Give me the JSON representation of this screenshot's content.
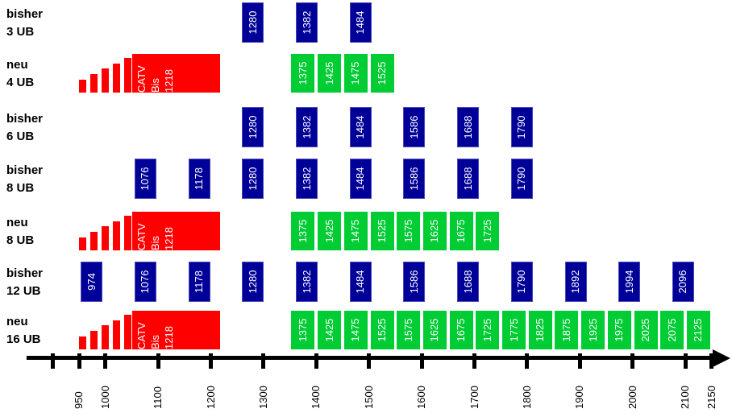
{
  "colors": {
    "bisher_box": "#000099",
    "bisher_border": "#4949b8",
    "neu_box": "#00cc33",
    "catv_block": "#ff0000",
    "axis": "#000000",
    "box_text": "#ffffff",
    "label_text": "#000000"
  },
  "chart_data": {
    "type": "bar",
    "description": "Frequency allocation comparison chart: rows of channel boxes positioned along a horizontal frequency axis",
    "axis": {
      "min": 900,
      "max": 2150,
      "arrow_at_right": true,
      "ticks": [
        {
          "value": 900,
          "label": ""
        },
        {
          "value": 950,
          "label": "950"
        },
        {
          "value": 1000,
          "label": "1000"
        },
        {
          "value": 1100,
          "label": "1100"
        },
        {
          "value": 1200,
          "label": "1200"
        },
        {
          "value": 1300,
          "label": "1300"
        },
        {
          "value": 1400,
          "label": "1400"
        },
        {
          "value": 1500,
          "label": "1500"
        },
        {
          "value": 1600,
          "label": "1600"
        },
        {
          "value": 1700,
          "label": "1700"
        },
        {
          "value": 1800,
          "label": "1800"
        },
        {
          "value": 1900,
          "label": "1900"
        },
        {
          "value": 2000,
          "label": "2000"
        },
        {
          "value": 2100,
          "label": "2100"
        },
        {
          "value": 2150,
          "label": "2150"
        }
      ]
    },
    "catv": {
      "label_lines": [
        "CATV",
        "Bis",
        "1218"
      ],
      "block_from": 1051,
      "block_to": 1218,
      "ramp": {
        "from": 950,
        "to": 1048,
        "bars": 5
      }
    },
    "rows": [
      {
        "id": "bisher-3ub",
        "label_line1": "bisher",
        "label_line2": "3 UB",
        "kind": "bisher",
        "catv": false,
        "boxes": [
          1280,
          1382,
          1484
        ]
      },
      {
        "id": "neu-4ub",
        "label_line1": "neu",
        "label_line2": "4 UB",
        "kind": "neu",
        "catv": true,
        "boxes": [
          1375,
          1425,
          1475,
          1525
        ]
      },
      {
        "id": "bisher-6ub",
        "label_line1": "bisher",
        "label_line2": "6 UB",
        "kind": "bisher",
        "catv": false,
        "boxes": [
          1280,
          1382,
          1484,
          1586,
          1688,
          1790
        ]
      },
      {
        "id": "bisher-8ub",
        "label_line1": "bisher",
        "label_line2": "8 UB",
        "kind": "bisher",
        "catv": false,
        "boxes": [
          1076,
          1178,
          1280,
          1382,
          1484,
          1586,
          1688,
          1790
        ]
      },
      {
        "id": "neu-8ub",
        "label_line1": "neu",
        "label_line2": "8 UB",
        "kind": "neu",
        "catv": true,
        "boxes": [
          1375,
          1425,
          1475,
          1525,
          1575,
          1625,
          1675,
          1725
        ]
      },
      {
        "id": "bisher-12ub",
        "label_line1": "bisher",
        "label_line2": "12 UB",
        "kind": "bisher",
        "catv": false,
        "boxes": [
          974,
          1076,
          1178,
          1280,
          1382,
          1484,
          1586,
          1688,
          1790,
          1892,
          1994,
          2096
        ]
      },
      {
        "id": "neu-16ub",
        "label_line1": "neu",
        "label_line2": "16 UB",
        "kind": "neu",
        "catv": true,
        "boxes": [
          1375,
          1425,
          1475,
          1525,
          1575,
          1625,
          1675,
          1725,
          1775,
          1825,
          1875,
          1925,
          1975,
          2025,
          2075,
          2125
        ]
      }
    ]
  }
}
